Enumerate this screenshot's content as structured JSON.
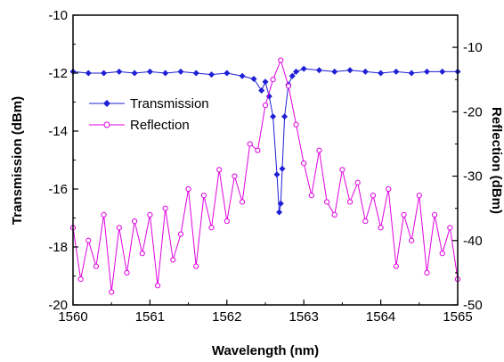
{
  "chart_data": {
    "type": "line",
    "xlabel": "Wavelength (nm)",
    "ylabel_left": "Transmission (dBm)",
    "ylabel_right": "Reflection (dBm)",
    "xlim": [
      1560,
      1565
    ],
    "ylim_left": [
      -20,
      -10
    ],
    "ylim_right": [
      -50,
      -5
    ],
    "x_ticks": [
      "1560",
      "1561",
      "1562",
      "1563",
      "1564",
      "1565"
    ],
    "y_ticks_left": [
      "-10",
      "-12",
      "-14",
      "-16",
      "-18",
      "-20"
    ],
    "y_ticks_right": [
      "-10",
      "-20",
      "-30",
      "-40",
      "-50"
    ],
    "grid": false,
    "legend_position": "upper-left",
    "series": [
      {
        "name": "Transmission",
        "axis": "left",
        "color": "#1f1fd6",
        "marker": "filled-diamond",
        "x": [
          1560.0,
          1560.2,
          1560.4,
          1560.6,
          1560.8,
          1561.0,
          1561.2,
          1561.4,
          1561.6,
          1561.8,
          1562.0,
          1562.2,
          1562.35,
          1562.45,
          1562.5,
          1562.55,
          1562.6,
          1562.65,
          1562.68,
          1562.7,
          1562.72,
          1562.75,
          1562.8,
          1562.85,
          1562.9,
          1563.0,
          1563.2,
          1563.4,
          1563.6,
          1563.8,
          1564.0,
          1564.2,
          1564.4,
          1564.6,
          1564.8,
          1565.0
        ],
        "values": [
          -11.95,
          -12.0,
          -12.0,
          -11.95,
          -12.0,
          -11.95,
          -12.0,
          -11.95,
          -12.0,
          -12.05,
          -12.0,
          -12.1,
          -12.2,
          -12.6,
          -12.3,
          -12.8,
          -13.5,
          -15.5,
          -16.8,
          -16.5,
          -15.3,
          -13.5,
          -12.4,
          -12.1,
          -11.95,
          -11.85,
          -11.9,
          -11.95,
          -11.9,
          -11.95,
          -12.0,
          -11.95,
          -12.0,
          -11.95,
          -11.95,
          -11.95
        ]
      },
      {
        "name": "Reflection",
        "axis": "right",
        "color": "#e000e0",
        "marker": "open-circle",
        "x": [
          1560.0,
          1560.1,
          1560.2,
          1560.3,
          1560.4,
          1560.5,
          1560.6,
          1560.7,
          1560.8,
          1560.9,
          1561.0,
          1561.1,
          1561.2,
          1561.3,
          1561.4,
          1561.5,
          1561.6,
          1561.7,
          1561.8,
          1561.9,
          1562.0,
          1562.1,
          1562.2,
          1562.3,
          1562.4,
          1562.5,
          1562.6,
          1562.7,
          1562.8,
          1562.9,
          1563.0,
          1563.1,
          1563.2,
          1563.3,
          1563.4,
          1563.5,
          1563.6,
          1563.7,
          1563.8,
          1563.9,
          1564.0,
          1564.1,
          1564.2,
          1564.3,
          1564.4,
          1564.5,
          1564.6,
          1564.7,
          1564.8,
          1564.9,
          1565.0
        ],
        "values": [
          -38,
          -46,
          -40,
          -44,
          -36,
          -48,
          -38,
          -45,
          -37,
          -42,
          -36,
          -47,
          -35,
          -43,
          -39,
          -32,
          -44,
          -33,
          -38,
          -29,
          -37,
          -30,
          -34,
          -25,
          -26,
          -19,
          -15,
          -12,
          -16,
          -22,
          -28,
          -33,
          -26,
          -34,
          -36,
          -29,
          -34,
          -31,
          -37,
          -33,
          -38,
          -32,
          -44,
          -36,
          -40,
          -33,
          -45,
          -36,
          -42,
          -38,
          -46
        ]
      }
    ]
  }
}
